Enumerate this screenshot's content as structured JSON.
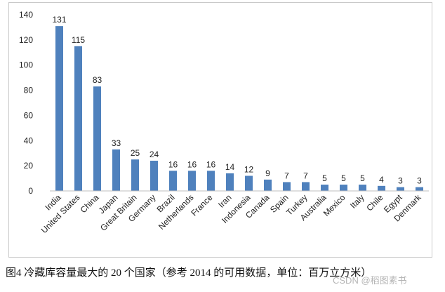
{
  "chart_data": {
    "type": "bar",
    "categories": [
      "India",
      "United States",
      "China",
      "Japan",
      "Great Britain",
      "Germany",
      "Brazil",
      "Netherlands",
      "France",
      "Iran",
      "Indonesia",
      "Canada",
      "Spain",
      "Turkey",
      "Australia",
      "Mexico",
      "Italy",
      "Chile",
      "Egypt",
      "Denmark"
    ],
    "values": [
      131,
      115,
      83,
      33,
      25,
      24,
      16,
      16,
      16,
      14,
      12,
      9,
      7,
      7,
      5,
      5,
      5,
      4,
      3,
      3
    ],
    "y_ticks": [
      0,
      20,
      40,
      60,
      80,
      100,
      120,
      140
    ],
    "ylim": [
      0,
      140
    ],
    "grid": false,
    "legend": "none",
    "bar_color": "#4f81bd",
    "xlabel": "",
    "ylabel": ""
  },
  "caption": "图4 冷藏库容量最大的 20 个国家（参考 2014 的可用数据，单位：百万立方米）",
  "watermark": "CSDN @稻图素书"
}
